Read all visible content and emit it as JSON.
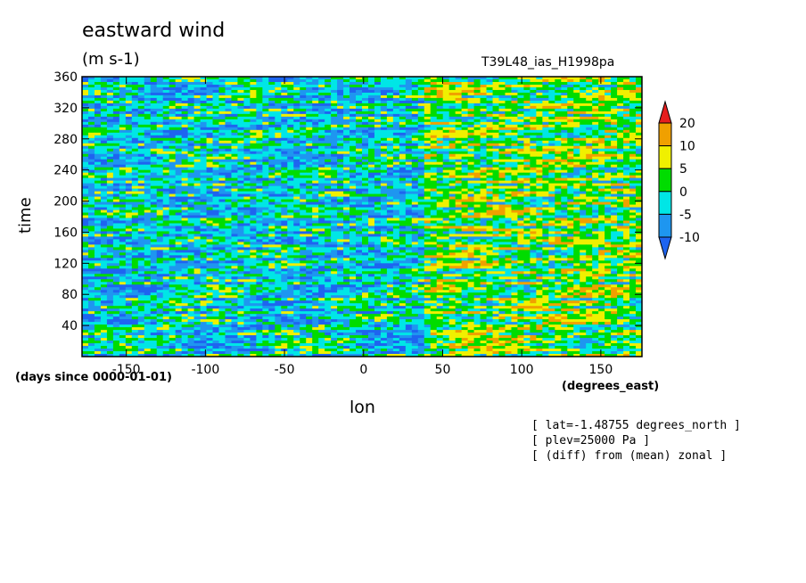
{
  "chart_data": {
    "type": "heatmap",
    "title": "eastward wind",
    "units": "(m s-1)",
    "run_name": "T39L48_ias_H1998pa",
    "xlabel": "lon",
    "x_units": "(degrees_east)",
    "ylabel": "time",
    "y_units": "(days since 0000-01-01)",
    "xlim": [
      -178,
      176
    ],
    "ylim": [
      0,
      360
    ],
    "x_ticks": [
      -150,
      -100,
      -50,
      0,
      50,
      100,
      150
    ],
    "y_ticks": [
      40,
      80,
      120,
      160,
      200,
      240,
      280,
      320,
      360
    ],
    "colorbar": {
      "levels": [
        -10,
        -5,
        0,
        5,
        10,
        20
      ],
      "colors": [
        "#1e64f0",
        "#1e96f0",
        "#00e6e6",
        "#00dc00",
        "#f0f000",
        "#f0a000",
        "#e61e1e"
      ],
      "extend": "both"
    },
    "annotations": [
      "[ lat=-1.48755 degrees_north ]",
      "[ plev=25000 Pa ]",
      "[ (diff) from (mean) zonal ]"
    ]
  }
}
